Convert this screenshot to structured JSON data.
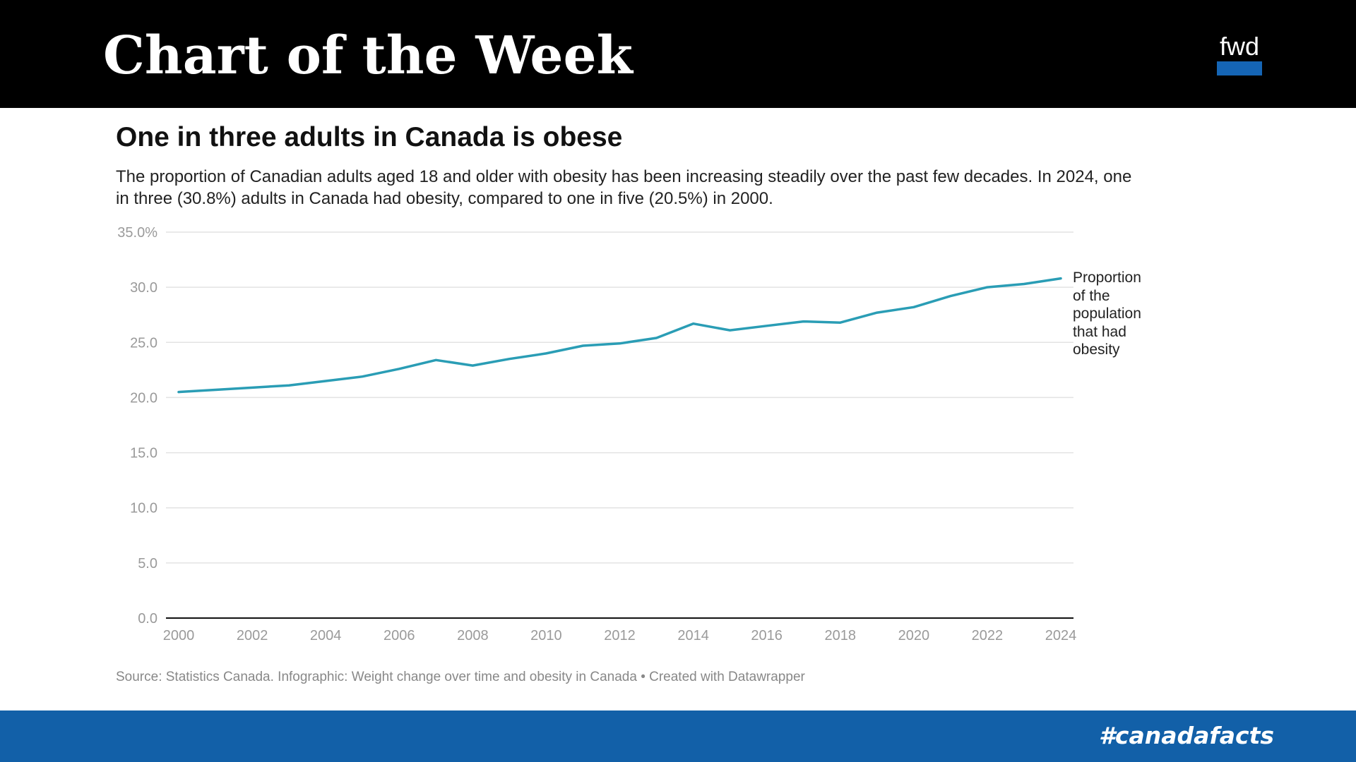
{
  "banner": {
    "title": "Chart of the Week",
    "logo_text": "fwd",
    "hashtag": "#canadafacts"
  },
  "colors": {
    "banner_bg": "#000000",
    "footer_bg": "#1260a8",
    "logo_accent": "#1565b5",
    "line": "#2a9db5",
    "grid": "#e3e3e3",
    "axis": "#111111",
    "tick_text": "#9a9a9a"
  },
  "chart_data": {
    "type": "line",
    "title": "One in three adults in Canada is obese",
    "subtitle": "The proportion of Canadian adults aged 18 and older with obesity has been increasing steadily over the past few decades. In 2024, one in three (30.8%) adults in Canada had obesity, compared to one in five (20.5%) in 2000.",
    "source": "Source: Statistics Canada. Infographic: Weight change over time and obesity in Canada • Created with Datawrapper",
    "xlabel": "",
    "ylabel": "",
    "xlim": [
      2000,
      2024
    ],
    "ylim": [
      0,
      35
    ],
    "x_ticks": [
      "2000",
      "2002",
      "2004",
      "2006",
      "2008",
      "2010",
      "2012",
      "2014",
      "2016",
      "2018",
      "2020",
      "2022",
      "2024"
    ],
    "y_ticks": [
      "0.0",
      "5.0",
      "10.0",
      "15.0",
      "20.0",
      "25.0",
      "30.0",
      "35.0%"
    ],
    "grid": true,
    "series": [
      {
        "label_lines": [
          "Proportion",
          "of the",
          "population",
          "that had",
          "obesity"
        ],
        "x": [
          2000,
          2001,
          2002,
          2003,
          2004,
          2005,
          2006,
          2007,
          2008,
          2009,
          2010,
          2011,
          2012,
          2013,
          2014,
          2015,
          2016,
          2017,
          2018,
          2019,
          2020,
          2021,
          2022,
          2023,
          2024
        ],
        "values": [
          20.5,
          20.7,
          20.9,
          21.1,
          21.5,
          21.9,
          22.6,
          23.4,
          22.9,
          23.5,
          24.0,
          24.7,
          24.9,
          25.4,
          26.7,
          26.1,
          26.5,
          26.9,
          26.8,
          27.7,
          28.2,
          29.2,
          30.0,
          30.3,
          30.8
        ]
      }
    ]
  }
}
